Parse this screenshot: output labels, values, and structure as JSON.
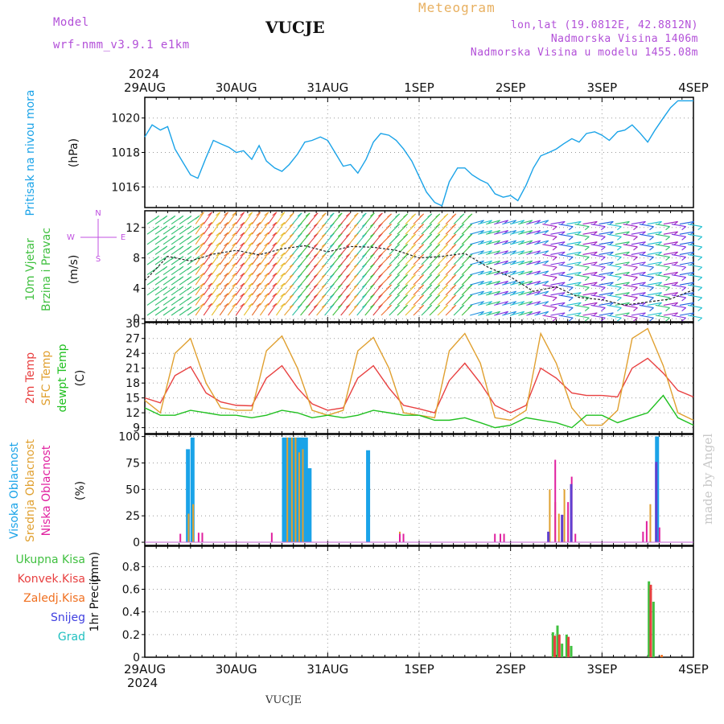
{
  "header": {
    "model_label": "Model",
    "model_name": "wrf-nmm_v3.9.1 e1km",
    "station": "VUCJE",
    "product": "Meteogram",
    "coords": "lon,lat (19.0812E, 42.8812N)",
    "altitude": "Nadmorska Visina 1406m",
    "model_altitude": "Nadmorska Visina u modelu 1455.08m",
    "year": "2024",
    "footer_station": "VUCJE",
    "credit": "made by Angel"
  },
  "time_axis": {
    "labels": [
      "29AUG",
      "30AUG",
      "31AUG",
      "1SEP",
      "2SEP",
      "3SEP",
      "4SEP"
    ]
  },
  "colors": {
    "pressure": "#1aa3e8",
    "temp2m": "#e84040",
    "sfc_temp": "#e0a030",
    "dewpoint": "#20c020",
    "cloud_high": "#1aa3e8",
    "cloud_mid": "#e0a030",
    "cloud_low": "#e0209f",
    "precip_total": "#40c040",
    "precip_conv": "#e84040",
    "precip_frozen": "#f07020",
    "snow": "#4040e0",
    "graupel": "#20c0c0",
    "wind_dir_label": "#c050e0"
  },
  "chart_data": [
    {
      "type": "line",
      "ylabel_1": "Pritisak na nivou mora",
      "ylabel_2": "(hPa)",
      "yticks": [
        1016,
        1018,
        1020
      ],
      "ylim": [
        1014.8,
        1021.2
      ],
      "x_days": [
        0,
        0.08,
        0.17,
        0.25,
        0.33,
        0.42,
        0.5,
        0.58,
        0.67,
        0.75,
        0.83,
        0.92,
        1,
        1.08,
        1.17,
        1.25,
        1.33,
        1.42,
        1.5,
        1.58,
        1.67,
        1.75,
        1.83,
        1.92,
        2,
        2.08,
        2.17,
        2.25,
        2.33,
        2.42,
        2.5,
        2.58,
        2.67,
        2.75,
        2.83,
        2.92,
        3,
        3.08,
        3.17,
        3.25,
        3.33,
        3.42,
        3.5,
        3.58,
        3.67,
        3.75,
        3.83,
        3.92,
        4,
        4.08,
        4.17,
        4.25,
        4.33,
        4.42,
        4.5,
        4.58,
        4.67,
        4.75,
        4.83,
        4.92,
        5,
        5.08,
        5.17,
        5.25,
        5.33,
        5.42,
        5.5,
        5.58,
        5.67,
        5.75,
        5.83,
        5.92,
        6
      ],
      "series": [
        {
          "values": [
            1018.9,
            1019.6,
            1019.3,
            1019.5,
            1018.2,
            1017.4,
            1016.7,
            1016.5,
            1017.7,
            1018.7,
            1018.5,
            1018.3,
            1018.0,
            1018.1,
            1017.6,
            1018.4,
            1017.5,
            1017.1,
            1016.9,
            1017.3,
            1017.9,
            1018.6,
            1018.7,
            1018.9,
            1018.7,
            1018.0,
            1017.2,
            1017.3,
            1016.8,
            1017.6,
            1018.6,
            1019.1,
            1019.0,
            1018.7,
            1018.2,
            1017.5,
            1016.6,
            1015.7,
            1015.1,
            1014.9,
            1016.3,
            1017.1,
            1017.1,
            1016.7,
            1016.4,
            1016.2,
            1015.6,
            1015.4,
            1015.5,
            1015.2,
            1016.1,
            1017.1,
            1017.8,
            1018.0,
            1018.2,
            1018.5,
            1018.8,
            1018.6,
            1019.1,
            1019.2,
            1019.0,
            1018.7,
            1019.2,
            1019.3,
            1019.6,
            1019.1,
            1018.6,
            1019.3,
            1020.0,
            1020.6,
            1021.0,
            1021.0,
            1021.0
          ]
        }
      ]
    },
    {
      "type": "line",
      "ylabel_1": "10m Vjetar",
      "ylabel_2": "Brzina i Pravac",
      "ylabel_3": "(m/s)",
      "direction_legend": [
        "N",
        "W",
        "E",
        "S"
      ],
      "yticks": [
        0,
        4,
        8,
        12
      ],
      "ylim": [
        -0.4,
        14.2
      ],
      "x_days": [
        0,
        0.25,
        0.5,
        0.75,
        1,
        1.25,
        1.5,
        1.75,
        2,
        2.25,
        2.5,
        2.75,
        3,
        3.25,
        3.5,
        3.75,
        4,
        4.25,
        4.5,
        4.75,
        5,
        5.25,
        5.5,
        5.75,
        6
      ],
      "series": [
        {
          "values": [
            5.0,
            8.2,
            7.6,
            8.5,
            9.0,
            8.4,
            9.2,
            9.6,
            8.8,
            9.5,
            9.4,
            9.0,
            8.0,
            8.2,
            8.6,
            6.8,
            5.5,
            3.6,
            4.2,
            2.8,
            2.5,
            1.8,
            2.2,
            2.6,
            3.8
          ]
        }
      ]
    },
    {
      "type": "line",
      "ylabel_1": "2m Temp",
      "ylabel_2": "SFC Temp",
      "ylabel_3": "dewpt Temp",
      "ylabel_4": "(C)",
      "yticks": [
        9,
        12,
        15,
        18,
        21,
        24,
        27,
        30
      ],
      "ylim": [
        7.8,
        30.2
      ],
      "x_days": [
        0,
        0.17,
        0.33,
        0.5,
        0.67,
        0.83,
        1,
        1.17,
        1.33,
        1.5,
        1.67,
        1.83,
        2,
        2.17,
        2.33,
        2.5,
        2.67,
        2.83,
        3,
        3.17,
        3.33,
        3.5,
        3.67,
        3.83,
        4,
        4.17,
        4.33,
        4.5,
        4.67,
        4.83,
        5,
        5.17,
        5.33,
        5.5,
        5.67,
        5.83,
        6
      ],
      "series": [
        {
          "values": [
            15.0,
            14.0,
            19.5,
            21.3,
            16.0,
            14.2,
            13.5,
            13.4,
            19.0,
            21.5,
            17.0,
            13.8,
            12.5,
            13.0,
            19.0,
            21.5,
            17.0,
            13.5,
            12.8,
            12.0,
            18.5,
            22.0,
            18.0,
            13.5,
            12.0,
            13.5,
            21.0,
            19.0,
            16.0,
            15.5,
            15.5,
            15.2,
            21.0,
            23.0,
            20.0,
            16.5,
            15.2
          ]
        },
        {
          "values": [
            14.5,
            12.0,
            24.0,
            27.0,
            18.0,
            13.0,
            12.5,
            12.5,
            24.5,
            27.5,
            21.0,
            12.5,
            11.5,
            12.5,
            24.5,
            27.2,
            21.0,
            12.0,
            11.5,
            11.0,
            24.5,
            28.0,
            22.0,
            11.0,
            10.5,
            12.5,
            28.0,
            22.0,
            13.0,
            9.5,
            9.5,
            12.5,
            27.0,
            29.0,
            21.5,
            12.0,
            10.5
          ]
        },
        {
          "values": [
            13.0,
            11.5,
            11.5,
            12.5,
            12.0,
            11.5,
            11.5,
            11.0,
            11.5,
            12.5,
            12.0,
            11.0,
            11.5,
            11.0,
            11.5,
            12.5,
            12.0,
            11.5,
            11.5,
            10.5,
            10.5,
            11.0,
            10.0,
            9.0,
            9.5,
            11.0,
            10.5,
            10.0,
            9.0,
            11.5,
            11.5,
            10.0,
            11.0,
            12.0,
            15.5,
            11.0,
            9.5
          ]
        }
      ]
    },
    {
      "type": "bar",
      "ylabel_1": "Visoka Oblacnost",
      "ylabel_2": "Srednja Oblacnost",
      "ylabel_3": "Niska Oblacnost",
      "ylabel_4": "(%)",
      "yticks": [
        0,
        25,
        50,
        75,
        100
      ],
      "ylim": [
        -3,
        102
      ],
      "series": [
        {
          "name": "Visoka Oblacnost",
          "x_days": [
            0.45,
            0.5,
            1.5,
            1.54,
            1.58,
            1.62,
            1.66,
            1.7,
            1.74,
            1.78,
            2.42,
            5.58
          ],
          "values": [
            88,
            99,
            99,
            99,
            99,
            99,
            99,
            99,
            99,
            70,
            87,
            100
          ]
        },
        {
          "name": "Srednja Oblacnost",
          "x_days": [
            0.47,
            0.52,
            1.55,
            1.6,
            1.64,
            1.68,
            1.72,
            2.78,
            4.42,
            4.48,
            4.52,
            4.58,
            5.52
          ],
          "values": [
            27,
            36,
            99,
            99,
            99,
            85,
            88,
            10,
            50,
            38,
            27,
            50,
            36
          ]
        },
        {
          "name": "Niska Oblacnost",
          "x_days": [
            0.38,
            0.58,
            0.62,
            1.38,
            2.78,
            2.82,
            3.82,
            3.88,
            3.92,
            4.48,
            4.62,
            4.66,
            4.7,
            5.44,
            5.48,
            5.62
          ],
          "values": [
            8,
            9,
            9,
            9,
            8,
            8,
            8,
            8,
            8,
            78,
            38,
            62,
            8,
            10,
            20,
            14
          ]
        },
        {
          "name": "Ukupna",
          "x_days": [
            4.4,
            4.55,
            4.65,
            5.58
          ],
          "values": [
            10,
            26,
            55,
            76
          ]
        }
      ]
    },
    {
      "type": "bar",
      "legend": [
        "Ukupna Kisa",
        "Konvek.Kisa",
        "Zaledj.Kisa",
        "Snijeg",
        "Grad"
      ],
      "ylabel_1": "1hr Precip",
      "ylabel_2": "(mm)",
      "yticks": [
        0,
        0.2,
        0.4,
        0.6,
        0.8
      ],
      "ylim": [
        0,
        0.98
      ],
      "series": [
        {
          "name": "Ukupna Kisa",
          "x_days": [
            4.45,
            4.5,
            4.55,
            4.6,
            4.65,
            5.5,
            5.55
          ],
          "values": [
            0.22,
            0.28,
            0.12,
            0.2,
            0.1,
            0.67,
            0.49
          ]
        },
        {
          "name": "Konvek.Kisa",
          "x_days": [
            4.47,
            4.52,
            4.62,
            5.52
          ],
          "values": [
            0.19,
            0.2,
            0.18,
            0.64
          ]
        },
        {
          "name": "Zaledj.Kisa",
          "x_days": [
            5.64
          ],
          "values": [
            0.02
          ]
        }
      ]
    }
  ]
}
